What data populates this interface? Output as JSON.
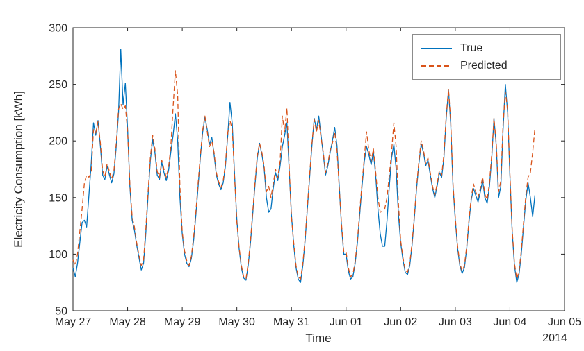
{
  "chart_data": {
    "type": "line",
    "title": "",
    "xlabel": "Time",
    "ylabel": "Electricity Consumption [kWh]",
    "year_label": "2014",
    "xlim": [
      0,
      216
    ],
    "ylim": [
      50,
      300
    ],
    "grid": false,
    "x_unit": "hours since May 27, 2014 00:00",
    "x_step_hours": 1,
    "y_ticks": [
      50,
      100,
      150,
      200,
      250,
      300
    ],
    "x_ticks": {
      "positions": [
        0,
        24,
        48,
        72,
        96,
        120,
        144,
        168,
        192,
        216
      ],
      "labels": [
        "May 27",
        "May 28",
        "May 29",
        "May 30",
        "May 31",
        "Jun 01",
        "Jun 02",
        "Jun 03",
        "Jun 04",
        "Jun 05"
      ]
    },
    "legend": {
      "position": "northeast",
      "entries": [
        {
          "label": "True",
          "color": "#0072BD",
          "style": "solid"
        },
        {
          "label": "Predicted",
          "color": "#D95319",
          "style": "dashed"
        }
      ]
    },
    "series": [
      {
        "name": "True",
        "color": "#0072BD",
        "line_style": "solid",
        "values": [
          88,
          80,
          92,
          110,
          128,
          130,
          124,
          152,
          180,
          216,
          205,
          218,
          196,
          170,
          166,
          178,
          170,
          163,
          171,
          195,
          225,
          281,
          232,
          251,
          210,
          160,
          130,
          121,
          108,
          97,
          86,
          92,
          118,
          152,
          183,
          201,
          190,
          170,
          166,
          181,
          172,
          165,
          174,
          190,
          205,
          224,
          200,
          150,
          118,
          100,
          92,
          89,
          96,
          112,
          135,
          160,
          186,
          208,
          221,
          210,
          197,
          203,
          188,
          170,
          162,
          157,
          163,
          178,
          205,
          234,
          215,
          170,
          130,
          105,
          88,
          79,
          77,
          90,
          110,
          136,
          162,
          185,
          198,
          188,
          176,
          150,
          137,
          140,
          158,
          172,
          165,
          178,
          195,
          205,
          216,
          175,
          135,
          108,
          88,
          78,
          75,
          90,
          112,
          140,
          168,
          196,
          220,
          210,
          222,
          205,
          188,
          170,
          178,
          190,
          200,
          212,
          196,
          160,
          125,
          100,
          100,
          85,
          78,
          80,
          92,
          110,
          135,
          160,
          182,
          195,
          188,
          179,
          190,
          170,
          140,
          118,
          107,
          107,
          130,
          160,
          185,
          197,
          175,
          135,
          110,
          95,
          84,
          82,
          90,
          108,
          132,
          158,
          180,
          197,
          190,
          178,
          183,
          170,
          158,
          150,
          160,
          172,
          168,
          185,
          220,
          245,
          215,
          160,
          130,
          105,
          90,
          83,
          88,
          105,
          128,
          148,
          158,
          152,
          146,
          155,
          165,
          150,
          145,
          160,
          185,
          220,
          196,
          150,
          160,
          210,
          250,
          225,
          170,
          120,
          90,
          75,
          82,
          100,
          125,
          148,
          163,
          150,
          133,
          152
        ]
      },
      {
        "name": "Predicted",
        "color": "#D95319",
        "line_style": "dashed",
        "values": [
          95,
          90,
          100,
          120,
          140,
          163,
          170,
          168,
          172,
          210,
          207,
          217,
          199,
          174,
          168,
          180,
          173,
          166,
          174,
          198,
          228,
          233,
          228,
          231,
          208,
          162,
          133,
          124,
          110,
          99,
          90,
          95,
          122,
          155,
          186,
          205,
          193,
          173,
          168,
          183,
          175,
          168,
          177,
          195,
          230,
          262,
          240,
          160,
          120,
          103,
          94,
          90,
          98,
          115,
          138,
          163,
          188,
          210,
          222,
          208,
          195,
          200,
          190,
          172,
          164,
          159,
          165,
          180,
          207,
          218,
          210,
          168,
          128,
          106,
          90,
          80,
          78,
          92,
          112,
          138,
          164,
          187,
          198,
          190,
          178,
          155,
          160,
          150,
          162,
          175,
          168,
          182,
          222,
          208,
          229,
          178,
          133,
          110,
          90,
          80,
          78,
          92,
          114,
          142,
          170,
          198,
          219,
          208,
          218,
          203,
          190,
          172,
          180,
          192,
          198,
          208,
          192,
          158,
          127,
          102,
          102,
          88,
          80,
          82,
          94,
          112,
          138,
          163,
          185,
          208,
          192,
          182,
          193,
          173,
          150,
          137,
          138,
          140,
          150,
          170,
          190,
          216,
          195,
          145,
          112,
          97,
          86,
          84,
          92,
          110,
          134,
          160,
          182,
          200,
          192,
          180,
          185,
          172,
          160,
          152,
          162,
          174,
          170,
          188,
          222,
          246,
          218,
          162,
          132,
          107,
          92,
          85,
          90,
          107,
          130,
          150,
          162,
          155,
          150,
          158,
          168,
          153,
          148,
          163,
          188,
          220,
          198,
          155,
          165,
          215,
          243,
          228,
          172,
          122,
          92,
          78,
          85,
          103,
          128,
          152,
          168,
          172,
          190,
          211
        ]
      }
    ]
  }
}
